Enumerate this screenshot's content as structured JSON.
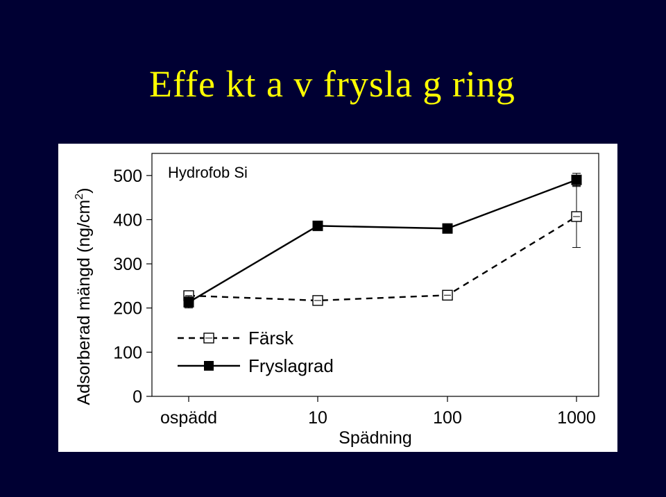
{
  "slide": {
    "title": "Effe kt a v frysla g ring"
  },
  "chart_data": {
    "type": "line",
    "title": "Hydrofob Si",
    "xlabel": "Spädning",
    "ylabel": "Adsorberad mängd (ng/cm",
    "ylabel_superscript": "2",
    "ylabel_close": ")",
    "categories": [
      "ospädd",
      "10",
      "100",
      "1000"
    ],
    "yticks": [
      "0",
      "100",
      "200",
      "300",
      "400",
      "500"
    ],
    "ylim": [
      0,
      550
    ],
    "grid": false,
    "legend_placement": "lower-left",
    "series": [
      {
        "name": "Färsk",
        "values": [
          228,
          217,
          229,
          407
        ],
        "errors": [
          5,
          5,
          6,
          70
        ],
        "style": "dashed",
        "marker": "open-square",
        "color": "#000000"
      },
      {
        "name": "Fryslagrad",
        "values": [
          213,
          386,
          380,
          490
        ],
        "errors": [
          13,
          5,
          5,
          15
        ],
        "style": "solid",
        "marker": "filled-square",
        "color": "#000000"
      }
    ]
  }
}
